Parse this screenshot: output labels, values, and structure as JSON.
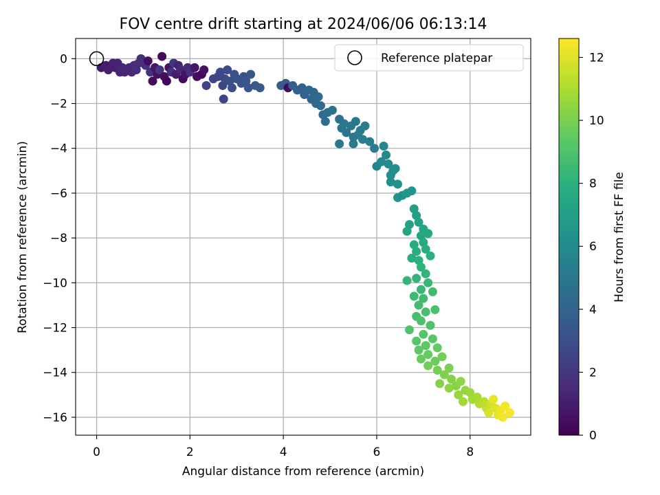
{
  "chart_data": {
    "type": "scatter",
    "title": "FOV centre drift starting at 2024/06/06 06:13:14",
    "xlabel": "Angular distance from reference (arcmin)",
    "ylabel": "Rotation from reference (arcmin)",
    "xlim": [
      -0.45,
      9.3
    ],
    "ylim": [
      -16.8,
      0.9
    ],
    "xticks": [
      0,
      2,
      4,
      6,
      8
    ],
    "yticks": [
      0,
      -2,
      -4,
      -6,
      -8,
      -10,
      -12,
      -14,
      -16
    ],
    "grid": true,
    "legend": {
      "label": "Reference platepar",
      "placement": "top-right",
      "marker": "open-circle"
    },
    "reference_point": {
      "x": 0,
      "y": 0
    },
    "colorbar": {
      "label": "Hours from first FF file",
      "colormap": "viridis",
      "range": [
        0,
        12.6
      ],
      "ticks": [
        0,
        2,
        4,
        6,
        8,
        10,
        12
      ]
    },
    "series": [
      {
        "points": [
          [
            0.1,
            -0.4,
            0.9
          ],
          [
            0.2,
            -0.3,
            1.0
          ],
          [
            0.25,
            -0.5,
            1.1
          ],
          [
            0.35,
            -0.2,
            1.2
          ],
          [
            0.4,
            -0.4,
            1.1
          ],
          [
            0.45,
            -0.2,
            1.2
          ],
          [
            0.5,
            -0.6,
            1.3
          ],
          [
            0.55,
            -0.4,
            1.3
          ],
          [
            0.6,
            -0.6,
            1.4
          ],
          [
            0.7,
            -0.4,
            1.4
          ],
          [
            0.75,
            -0.6,
            1.5
          ],
          [
            0.8,
            -0.3,
            1.5
          ],
          [
            0.85,
            -0.5,
            1.6
          ],
          [
            0.9,
            -0.2,
            1.6
          ],
          [
            0.95,
            0.0,
            1.7
          ],
          [
            1.05,
            -0.3,
            1.7
          ],
          [
            1.1,
            -0.1,
            0.5
          ],
          [
            1.15,
            -0.6,
            1.8
          ],
          [
            1.2,
            -1.0,
            0.4
          ],
          [
            1.25,
            -0.4,
            0.8
          ],
          [
            1.3,
            -0.7,
            0.6
          ],
          [
            1.35,
            -0.5,
            1.9
          ],
          [
            1.4,
            0.1,
            0.3
          ],
          [
            1.45,
            -0.8,
            0.5
          ],
          [
            1.5,
            -1.0,
            0.2
          ],
          [
            1.55,
            -0.4,
            0.7
          ],
          [
            1.6,
            -0.6,
            1.8
          ],
          [
            1.65,
            -0.2,
            1.9
          ],
          [
            1.7,
            -0.7,
            1.0
          ],
          [
            1.75,
            -0.3,
            1.2
          ],
          [
            1.8,
            -0.5,
            1.4
          ],
          [
            1.85,
            -0.9,
            0.3
          ],
          [
            1.9,
            -0.7,
            0.6
          ],
          [
            1.95,
            -0.4,
            1.5
          ],
          [
            2.0,
            -0.6,
            1.6
          ],
          [
            2.1,
            -0.4,
            0.8
          ],
          [
            2.15,
            -0.8,
            0.4
          ],
          [
            2.25,
            -0.7,
            0.2
          ],
          [
            2.3,
            -0.5,
            0.6
          ],
          [
            2.35,
            -1.2,
            2.5
          ],
          [
            2.5,
            -0.9,
            2.6
          ],
          [
            2.6,
            -0.8,
            2.6
          ],
          [
            2.65,
            -0.6,
            2.8
          ],
          [
            2.7,
            -1.2,
            2.7
          ],
          [
            2.72,
            -1.8,
            2.6
          ],
          [
            2.75,
            -0.9,
            2.9
          ],
          [
            2.8,
            -0.5,
            2.9
          ],
          [
            2.85,
            -1.0,
            3.0
          ],
          [
            2.9,
            -1.3,
            3.0
          ],
          [
            2.95,
            -0.7,
            3.1
          ],
          [
            3.0,
            -0.9,
            3.2
          ],
          [
            3.1,
            -1.1,
            3.2
          ],
          [
            3.15,
            -0.8,
            3.2
          ],
          [
            3.2,
            -1.0,
            3.3
          ],
          [
            3.25,
            -1.3,
            3.3
          ],
          [
            3.3,
            -0.7,
            3.4
          ],
          [
            3.4,
            -1.2,
            3.4
          ],
          [
            3.5,
            -1.3,
            3.5
          ],
          [
            3.95,
            -1.2,
            3.7
          ],
          [
            4.05,
            -1.1,
            3.7
          ],
          [
            4.1,
            -1.3,
            0.4
          ],
          [
            4.2,
            -1.2,
            3.8
          ],
          [
            4.3,
            -1.4,
            3.9
          ],
          [
            4.4,
            -1.3,
            3.9
          ],
          [
            4.45,
            -1.6,
            4.0
          ],
          [
            4.55,
            -1.4,
            4.1
          ],
          [
            4.6,
            -1.8,
            4.2
          ],
          [
            4.65,
            -1.5,
            4.2
          ],
          [
            4.7,
            -2.0,
            4.3
          ],
          [
            4.75,
            -1.7,
            4.3
          ],
          [
            4.8,
            -2.1,
            4.4
          ],
          [
            4.85,
            -2.5,
            4.5
          ],
          [
            4.9,
            -2.8,
            4.6
          ],
          [
            4.95,
            -2.4,
            4.6
          ],
          [
            5.05,
            -2.3,
            4.7
          ],
          [
            5.2,
            -2.7,
            4.8
          ],
          [
            5.25,
            -3.1,
            4.8
          ],
          [
            5.3,
            -2.9,
            4.9
          ],
          [
            5.35,
            -3.3,
            4.9
          ],
          [
            5.45,
            -3.0,
            5.0
          ],
          [
            5.5,
            -3.5,
            5.0
          ],
          [
            5.55,
            -2.8,
            5.1
          ],
          [
            5.6,
            -3.4,
            5.1
          ],
          [
            5.65,
            -3.2,
            5.2
          ],
          [
            5.7,
            -3.6,
            5.2
          ],
          [
            5.75,
            -3.0,
            5.3
          ],
          [
            5.85,
            -3.7,
            5.3
          ],
          [
            5.95,
            -4.0,
            5.4
          ],
          [
            5.2,
            -3.8,
            5.0
          ],
          [
            5.5,
            -3.8,
            5.2
          ],
          [
            6.0,
            -4.8,
            5.8
          ],
          [
            6.1,
            -4.6,
            5.9
          ],
          [
            6.15,
            -3.9,
            5.8
          ],
          [
            6.2,
            -4.3,
            5.9
          ],
          [
            6.25,
            -4.7,
            6.0
          ],
          [
            6.3,
            -5.2,
            6.1
          ],
          [
            6.3,
            -5.5,
            6.1
          ],
          [
            6.35,
            -5.0,
            6.2
          ],
          [
            6.4,
            -4.9,
            6.2
          ],
          [
            6.45,
            -5.6,
            6.3
          ],
          [
            6.45,
            -6.2,
            6.4
          ],
          [
            6.55,
            -6.1,
            6.4
          ],
          [
            6.65,
            -6.0,
            6.5
          ],
          [
            6.75,
            -5.9,
            6.5
          ],
          [
            6.8,
            -6.7,
            7.0
          ],
          [
            6.85,
            -7.0,
            7.1
          ],
          [
            6.7,
            -7.4,
            7.2
          ],
          [
            6.9,
            -7.3,
            7.2
          ],
          [
            6.65,
            -7.7,
            7.3
          ],
          [
            6.95,
            -7.9,
            7.4
          ],
          [
            7.0,
            -7.6,
            7.4
          ],
          [
            7.1,
            -7.8,
            7.5
          ],
          [
            7.0,
            -8.2,
            7.6
          ],
          [
            6.8,
            -8.3,
            7.7
          ],
          [
            6.85,
            -8.6,
            7.8
          ],
          [
            7.05,
            -8.5,
            7.8
          ],
          [
            6.75,
            -8.9,
            7.9
          ],
          [
            6.9,
            -9.0,
            8.0
          ],
          [
            7.15,
            -8.8,
            8.0
          ],
          [
            6.95,
            -9.3,
            8.1
          ],
          [
            7.05,
            -9.6,
            8.2
          ],
          [
            6.85,
            -9.8,
            8.2
          ],
          [
            6.65,
            -9.9,
            8.3
          ],
          [
            7.1,
            -10.0,
            8.4
          ],
          [
            6.95,
            -10.3,
            8.4
          ],
          [
            6.8,
            -10.6,
            8.5
          ],
          [
            7.0,
            -10.7,
            8.6
          ],
          [
            7.2,
            -10.4,
            8.6
          ],
          [
            6.9,
            -11.0,
            8.7
          ],
          [
            7.05,
            -11.3,
            8.8
          ],
          [
            6.85,
            -11.5,
            8.8
          ],
          [
            7.25,
            -11.2,
            8.9
          ],
          [
            6.95,
            -11.7,
            9.0
          ],
          [
            7.15,
            -11.9,
            9.0
          ],
          [
            6.7,
            -12.1,
            9.1
          ],
          [
            7.0,
            -12.3,
            9.2
          ],
          [
            6.85,
            -12.6,
            9.3
          ],
          [
            7.2,
            -12.5,
            9.3
          ],
          [
            7.05,
            -12.8,
            9.4
          ],
          [
            6.9,
            -13.0,
            9.4
          ],
          [
            7.3,
            -12.9,
            9.5
          ],
          [
            7.1,
            -13.2,
            9.6
          ],
          [
            6.95,
            -13.4,
            9.6
          ],
          [
            7.25,
            -13.5,
            9.7
          ],
          [
            7.4,
            -13.3,
            9.8
          ],
          [
            7.1,
            -13.7,
            9.8
          ],
          [
            7.3,
            -13.9,
            9.9
          ],
          [
            7.55,
            -13.8,
            10.0
          ],
          [
            7.45,
            -14.1,
            10.1
          ],
          [
            7.6,
            -14.3,
            10.2
          ],
          [
            7.35,
            -14.5,
            10.2
          ],
          [
            7.7,
            -14.6,
            10.3
          ],
          [
            7.8,
            -14.4,
            10.4
          ],
          [
            7.55,
            -14.7,
            10.4
          ],
          [
            7.9,
            -14.8,
            10.5
          ],
          [
            7.75,
            -15.0,
            10.6
          ],
          [
            8.0,
            -14.9,
            10.7
          ],
          [
            8.05,
            -15.2,
            10.8
          ],
          [
            7.85,
            -15.3,
            10.8
          ],
          [
            8.15,
            -15.1,
            10.9
          ],
          [
            8.2,
            -15.4,
            11.1
          ],
          [
            8.3,
            -15.3,
            11.3
          ],
          [
            8.35,
            -15.6,
            11.5
          ],
          [
            8.45,
            -15.4,
            11.7
          ],
          [
            8.4,
            -15.8,
            11.9
          ],
          [
            8.55,
            -15.6,
            12.0
          ],
          [
            8.6,
            -15.9,
            12.1
          ],
          [
            8.5,
            -15.2,
            12.2
          ],
          [
            8.65,
            -15.7,
            12.3
          ],
          [
            8.7,
            -16.0,
            12.4
          ],
          [
            8.75,
            -15.5,
            12.4
          ],
          [
            8.85,
            -15.8,
            12.5
          ]
        ]
      }
    ]
  }
}
